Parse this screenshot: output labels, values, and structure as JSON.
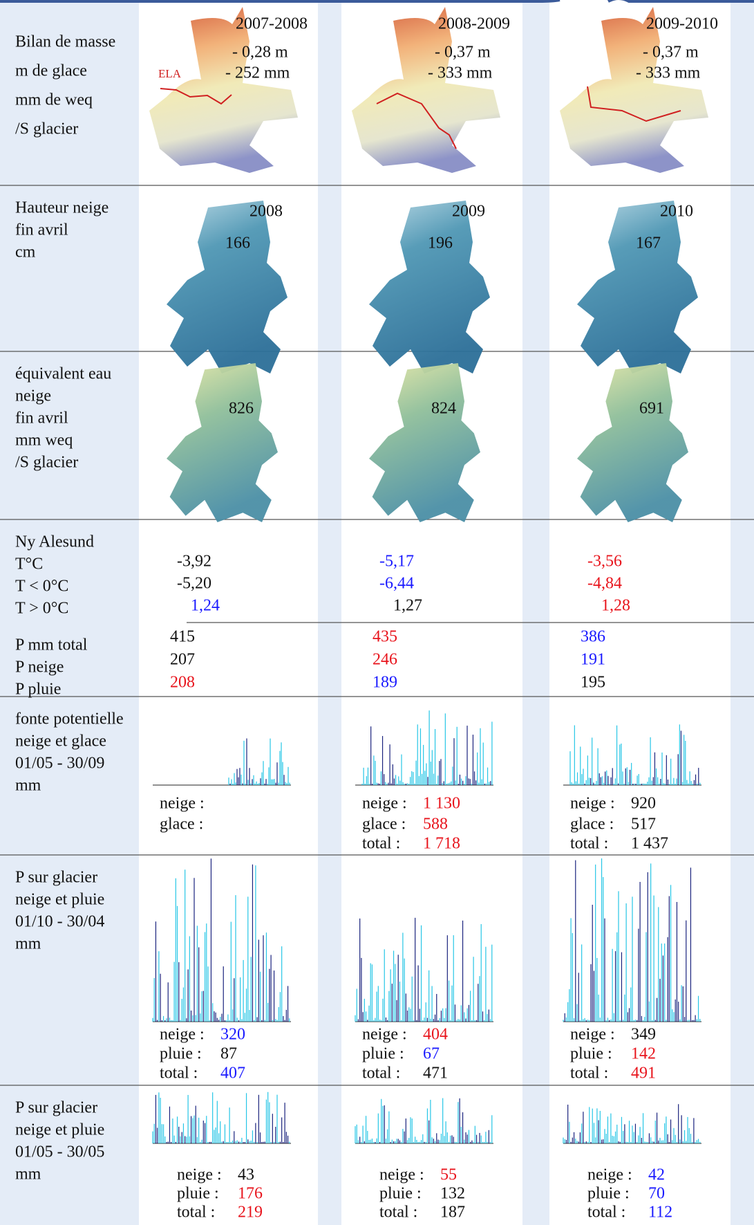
{
  "rows": [
    {
      "label": [
        "Bilan de masse",
        "m de glace",
        "mm de weq",
        "/S glacier"
      ],
      "cells": [
        {
          "year": "2007-2008",
          "m": "- 0,28 m",
          "mm": "- 252 mm",
          "ela": "ELA"
        },
        {
          "year": "2008-2009",
          "m": "- 0,37 m",
          "mm": "- 333 mm"
        },
        {
          "year": "2009-2010",
          "m": "- 0,37 m",
          "mm": "- 333 mm"
        }
      ]
    },
    {
      "label": [
        "Hauteur neige",
        "fin avril",
        "cm"
      ],
      "cells": [
        {
          "year": "2008",
          "value": "166"
        },
        {
          "year": "2009",
          "value": "196"
        },
        {
          "year": "2010",
          "value": "167"
        }
      ]
    },
    {
      "label": [
        "équivalent eau",
        "neige",
        "fin avril",
        "mm weq",
        "/S glacier"
      ],
      "cells": [
        {
          "value": "826"
        },
        {
          "value": "824"
        },
        {
          "value": "691"
        }
      ]
    },
    {
      "label": [
        "Ny Alesund",
        "T°C",
        "T < 0°C",
        "T > 0°C"
      ],
      "cells": [
        [
          {
            "text": "-3,92",
            "color": "#111111"
          },
          {
            "text": "-5,20",
            "color": "#111111"
          },
          {
            "text": "1,24",
            "color": "#1a1aff"
          }
        ],
        [
          {
            "text": "-5,17",
            "color": "#1a1aff"
          },
          {
            "text": "-6,44",
            "color": "#1a1aff"
          },
          {
            "text": "1,27",
            "color": "#111111"
          }
        ],
        [
          {
            "text": "-3,56",
            "color": "#e8141c"
          },
          {
            "text": "-4,84",
            "color": "#e8141c"
          },
          {
            "text": "1,28",
            "color": "#e8141c"
          }
        ]
      ]
    },
    {
      "label": [
        "P mm total",
        "P neige",
        "P pluie"
      ],
      "cells": [
        [
          {
            "text": "415",
            "color": "#111111"
          },
          {
            "text": "207",
            "color": "#111111"
          },
          {
            "text": "208",
            "color": "#e8141c"
          }
        ],
        [
          {
            "text": "435",
            "color": "#e8141c"
          },
          {
            "text": "246",
            "color": "#e8141c"
          },
          {
            "text": "189",
            "color": "#1a1aff"
          }
        ],
        [
          {
            "text": "386",
            "color": "#1a1aff"
          },
          {
            "text": "191",
            "color": "#1a1aff"
          },
          {
            "text": "195",
            "color": "#111111"
          }
        ]
      ]
    },
    {
      "label": [
        "fonte potentielle",
        "neige et glace",
        "01/05 - 30/09",
        "mm"
      ],
      "cells": [
        [
          {
            "label": "neige :"
          },
          {
            "label": "glace :"
          }
        ],
        [
          {
            "label": "neige :",
            "text": "1 130",
            "color": "#e8141c"
          },
          {
            "label": "glace :",
            "text": "588",
            "color": "#e8141c"
          },
          {
            "label": "total :",
            "text": "1 718",
            "color": "#e8141c"
          }
        ],
        [
          {
            "label": "neige :",
            "text": "920",
            "color": "#111111"
          },
          {
            "label": "glace :",
            "text": "517",
            "color": "#111111"
          },
          {
            "label": "total :",
            "text": "1 437",
            "color": "#111111"
          }
        ]
      ]
    },
    {
      "label": [
        "P sur glacier",
        "neige et pluie",
        "01/10 - 30/04",
        "mm"
      ],
      "cells": [
        [
          {
            "label": "neige :",
            "text": "320",
            "color": "#1a1aff"
          },
          {
            "label": "pluie :",
            "text": "87",
            "color": "#111111"
          },
          {
            "label": "total :",
            "text": "407",
            "color": "#1a1aff"
          }
        ],
        [
          {
            "label": "neige :",
            "text": "404",
            "color": "#e8141c"
          },
          {
            "label": "pluie :",
            "text": "67",
            "color": "#1a1aff"
          },
          {
            "label": "total :",
            "text": "471",
            "color": "#111111"
          }
        ],
        [
          {
            "label": "neige :",
            "text": "349",
            "color": "#111111"
          },
          {
            "label": "pluie :",
            "text": "142",
            "color": "#e8141c"
          },
          {
            "label": "total :",
            "text": "491",
            "color": "#e8141c"
          }
        ]
      ]
    },
    {
      "label": [
        "P sur glacier",
        "neige et pluie",
        "01/05 - 30/05",
        "mm"
      ],
      "cells": [
        [
          {
            "label": "neige :",
            "text": "43",
            "color": "#111111"
          },
          {
            "label": "pluie :",
            "text": "176",
            "color": "#e8141c"
          },
          {
            "label": "total :",
            "text": "219",
            "color": "#e8141c"
          }
        ],
        [
          {
            "label": "neige :",
            "text": "55",
            "color": "#e8141c"
          },
          {
            "label": "pluie :",
            "text": "132",
            "color": "#111111"
          },
          {
            "label": "total :",
            "text": "187",
            "color": "#111111"
          }
        ],
        [
          {
            "label": "neige :",
            "text": "42",
            "color": "#1a1aff"
          },
          {
            "label": "pluie :",
            "text": "70",
            "color": "#1a1aff"
          },
          {
            "label": "total :",
            "text": "112",
            "color": "#1a1aff"
          }
        ]
      ]
    }
  ]
}
